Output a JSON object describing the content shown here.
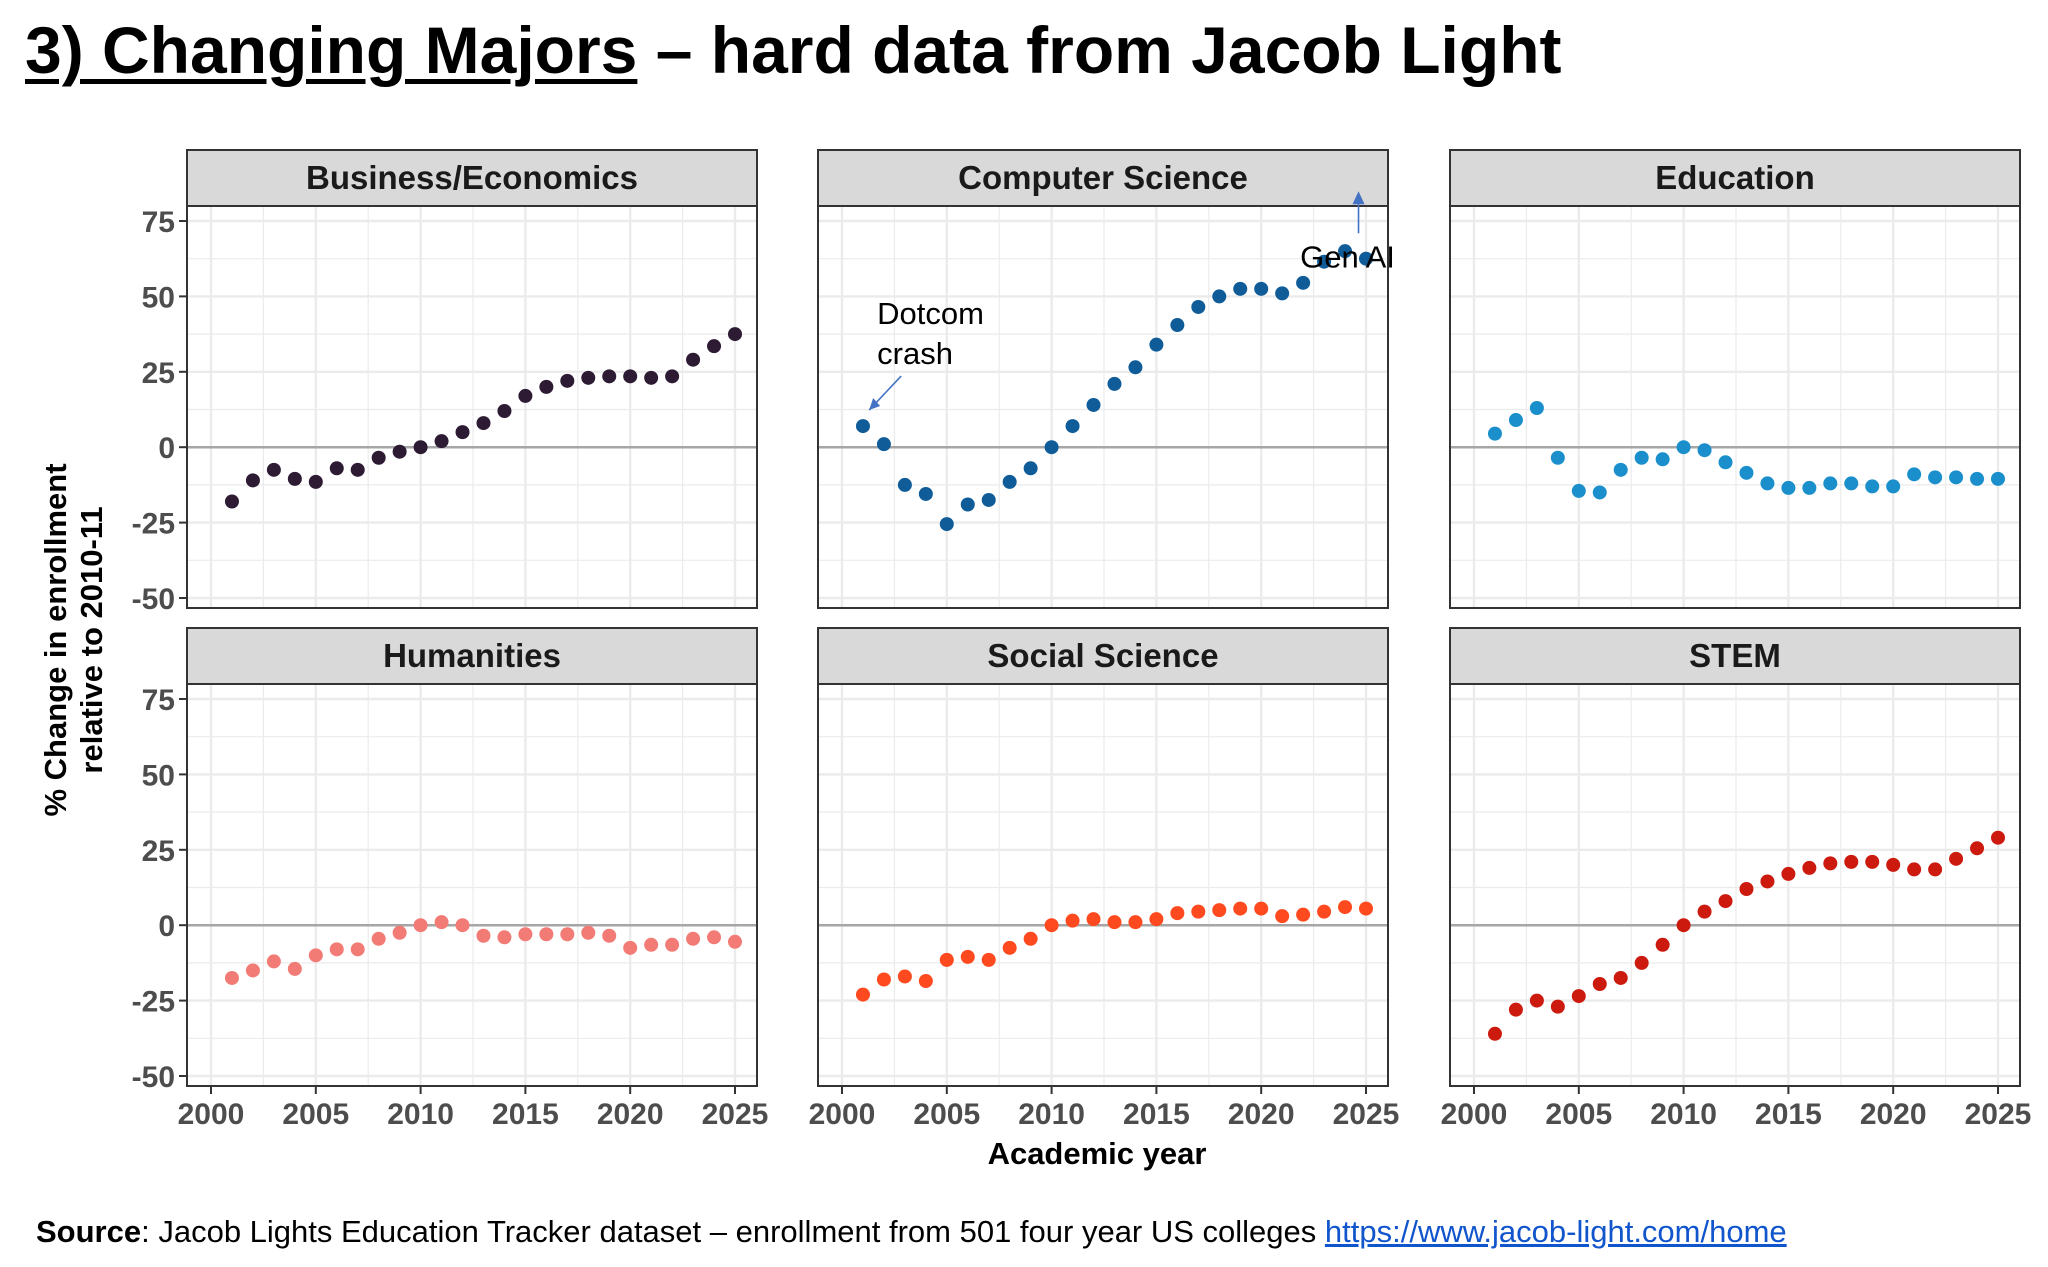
{
  "slide": {
    "title_underlined": "3) Changing Majors",
    "title_rest": " – hard data from Jacob Light",
    "source_label": "Source",
    "source_text": ": Jacob Lights Education Tracker dataset – enrollment from 501 four year US colleges ",
    "source_link": "https://www.jacob-light.com/home"
  },
  "colors": {
    "business": "#2d1a33",
    "cs": "#0f5c99",
    "education": "#1a8fcc",
    "humanities": "#f27b75",
    "social": "#ff4a1f",
    "stem": "#cc1a0f",
    "strip_bg": "#d9d9d9",
    "grid": "#ebebeb",
    "zero_line": "#a6a6a6"
  },
  "chart_data": {
    "type": "scatter",
    "facets": true,
    "xlabel": "Academic year",
    "ylabel_line1": "% Change in enrollment",
    "ylabel_line2": "relative to 2010-11",
    "xlim": [
      2000,
      2025
    ],
    "ylim": [
      -50,
      75
    ],
    "x_ticks": [
      2000,
      2005,
      2010,
      2015,
      2020,
      2025
    ],
    "y_ticks": [
      75,
      50,
      25,
      0,
      -25,
      -50
    ],
    "grid": true,
    "series": [
      {
        "name": "Business/Economics",
        "color_key": "business",
        "x": [
          2001,
          2002,
          2003,
          2004,
          2005,
          2006,
          2007,
          2008,
          2009,
          2010,
          2011,
          2012,
          2013,
          2014,
          2015,
          2016,
          2017,
          2018,
          2019,
          2020,
          2021,
          2022,
          2023,
          2024,
          2025
        ],
        "values": [
          -18,
          -11,
          -7.5,
          -10.5,
          -11.5,
          -7,
          -7.5,
          -3.5,
          -1.5,
          0,
          2,
          5,
          8,
          12,
          17,
          20,
          22,
          23,
          23.5,
          23.5,
          23,
          23.5,
          29,
          33.5,
          37.5
        ]
      },
      {
        "name": "Computer Science",
        "color_key": "cs",
        "x": [
          2001,
          2002,
          2003,
          2004,
          2005,
          2006,
          2007,
          2008,
          2009,
          2010,
          2011,
          2012,
          2013,
          2014,
          2015,
          2016,
          2017,
          2018,
          2019,
          2020,
          2021,
          2022,
          2023,
          2024,
          2025
        ],
        "values": [
          7,
          1,
          -12.5,
          -15.5,
          -25.5,
          -19,
          -17.5,
          -11.5,
          -7,
          0,
          7,
          14,
          21,
          26.5,
          34,
          40.5,
          46.5,
          50,
          52.5,
          52.5,
          51,
          54.5,
          61.5,
          65,
          62.5
        ]
      },
      {
        "name": "Education",
        "color_key": "education",
        "x": [
          2001,
          2002,
          2003,
          2004,
          2005,
          2006,
          2007,
          2008,
          2009,
          2010,
          2011,
          2012,
          2013,
          2014,
          2015,
          2016,
          2017,
          2018,
          2019,
          2020,
          2021,
          2022,
          2023,
          2024,
          2025
        ],
        "values": [
          4.5,
          9,
          13,
          -3.5,
          -14.5,
          -15,
          -7.5,
          -3.5,
          -4,
          0,
          -1,
          -5,
          -8.5,
          -12,
          -13.5,
          -13.5,
          -12,
          -12,
          -13,
          -13,
          -9,
          -10,
          -10,
          -10.5,
          -10.5
        ]
      },
      {
        "name": "Humanities",
        "color_key": "humanities",
        "x": [
          2001,
          2002,
          2003,
          2004,
          2005,
          2006,
          2007,
          2008,
          2009,
          2010,
          2011,
          2012,
          2013,
          2014,
          2015,
          2016,
          2017,
          2018,
          2019,
          2020,
          2021,
          2022,
          2023,
          2024,
          2025
        ],
        "values": [
          -17.5,
          -15,
          -12,
          -14.5,
          -10,
          -8,
          -8,
          -4.5,
          -2.5,
          0,
          1,
          0,
          -3.5,
          -4,
          -3,
          -3,
          -3,
          -2.5,
          -3.5,
          -7.5,
          -6.5,
          -6.5,
          -4.5,
          -4,
          -5.5
        ]
      },
      {
        "name": "Social Science",
        "color_key": "social",
        "x": [
          2001,
          2002,
          2003,
          2004,
          2005,
          2006,
          2007,
          2008,
          2009,
          2010,
          2011,
          2012,
          2013,
          2014,
          2015,
          2016,
          2017,
          2018,
          2019,
          2020,
          2021,
          2022,
          2023,
          2024,
          2025
        ],
        "values": [
          -23,
          -18,
          -17,
          -18.5,
          -11.5,
          -10.5,
          -11.5,
          -7.5,
          -4.5,
          0,
          1.5,
          2,
          1,
          1,
          2,
          4,
          4.5,
          5,
          5.5,
          5.5,
          3,
          3.5,
          4.5,
          6,
          5.5
        ]
      },
      {
        "name": "STEM",
        "color_key": "stem",
        "x": [
          2001,
          2002,
          2003,
          2004,
          2005,
          2006,
          2007,
          2008,
          2009,
          2010,
          2011,
          2012,
          2013,
          2014,
          2015,
          2016,
          2017,
          2018,
          2019,
          2020,
          2021,
          2022,
          2023,
          2024,
          2025
        ],
        "values": [
          -36,
          -28,
          -25,
          -27,
          -23.5,
          -19.5,
          -17.5,
          -12.5,
          -6.5,
          0,
          4.5,
          8,
          12,
          14.5,
          17,
          19,
          20.5,
          21,
          21,
          20,
          18.5,
          18.5,
          22,
          25.5,
          29
        ]
      }
    ],
    "annotations": [
      {
        "facet": 1,
        "text_line1": "Dotcom",
        "text_line2": "crash",
        "x": 2001.2,
        "y": 11
      },
      {
        "facet": 1,
        "text_line1": "Gen AI",
        "text_line2": "",
        "x": 2024.5,
        "y": 57
      }
    ]
  }
}
